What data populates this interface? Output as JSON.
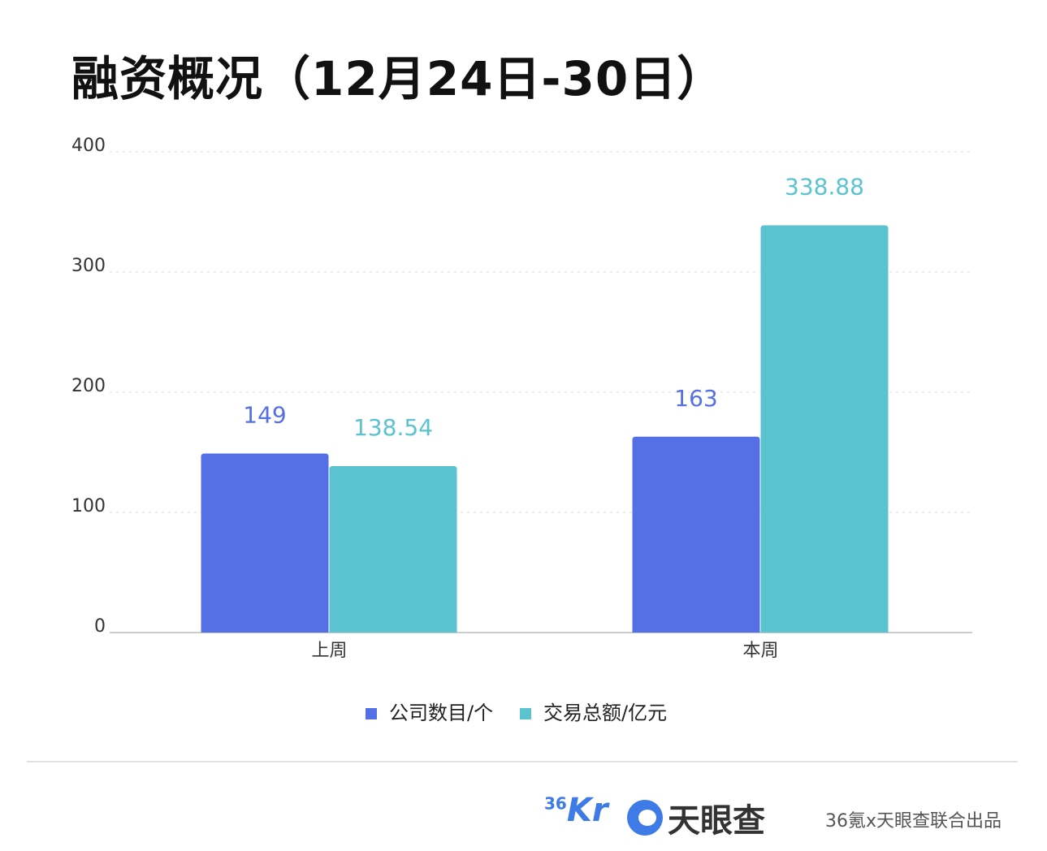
{
  "title": "融资概况（12月24日-30日）",
  "chart_data": {
    "type": "bar",
    "title": "融资概况（12月24日-30日）",
    "categories": [
      "上周",
      "本周"
    ],
    "series": [
      {
        "name": "公司数目/个",
        "values": [
          149,
          163
        ],
        "color": "#5570e6"
      },
      {
        "name": "交易总额/亿元",
        "values": [
          138.54,
          338.88
        ],
        "color": "#5bc3d0"
      }
    ],
    "value_labels": [
      [
        "149",
        "163"
      ],
      [
        "138.54",
        "338.88"
      ]
    ],
    "ylim": [
      0,
      400
    ],
    "yticks": [
      "0",
      "100",
      "200",
      "300",
      "400"
    ],
    "grid": true,
    "legend": "bottom"
  },
  "footer": {
    "logo_36kr": "36Kr",
    "logo_tianyancha": "天眼查",
    "credit": "36氪x天眼查联合出品"
  }
}
